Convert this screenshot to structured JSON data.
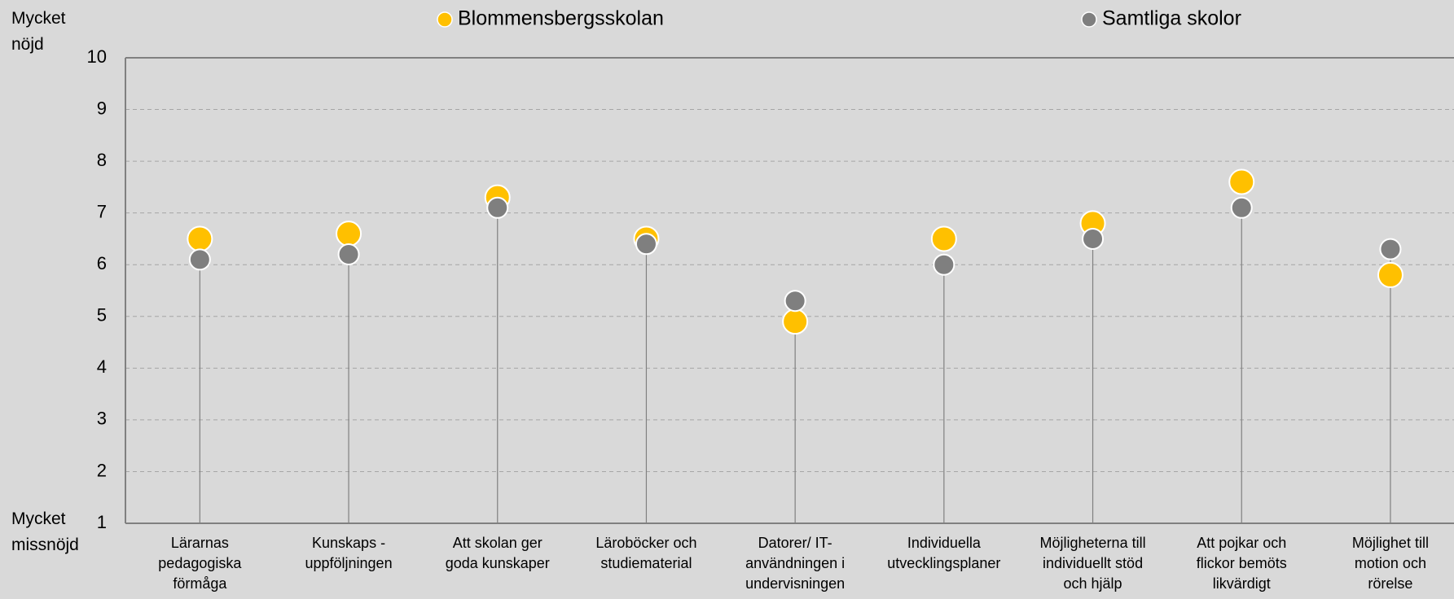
{
  "chart_data": {
    "type": "dot",
    "y_top_label": "Mycket\nnöjd",
    "y_bottom_label": "Mycket\nmissnöjd",
    "categories": [
      "Lärarnas\npedagogiska\nförmåga",
      "Kunskaps -\nuppföljningen",
      "Att skolan ger\ngoda kunskaper",
      "Läroböcker och\nstudiematerial",
      "Datorer/ IT-\nanvändningen i\nundervisningen",
      "Individuella\nutvecklingsplaner",
      "Möjligheterna till\nindividuellt stöd\noch hjälp",
      "Att pojkar och\nflickor bemöts\nlikvärdigt",
      "Möjlighet till\nmotion och\nrörelse"
    ],
    "series": [
      {
        "name": "Blommensbergsskolan",
        "color": "#ffc000",
        "values": [
          6.5,
          6.6,
          7.3,
          6.5,
          4.9,
          6.5,
          6.8,
          7.6,
          5.8
        ]
      },
      {
        "name": "Samtliga skolor",
        "color": "#7f7f7f",
        "values": [
          6.1,
          6.2,
          7.1,
          6.4,
          5.3,
          6.0,
          6.5,
          7.1,
          6.3
        ]
      }
    ],
    "ylim": [
      1,
      10
    ],
    "yticks": [
      1,
      2,
      3,
      4,
      5,
      6,
      7,
      8,
      9,
      10
    ],
    "grid": true
  }
}
